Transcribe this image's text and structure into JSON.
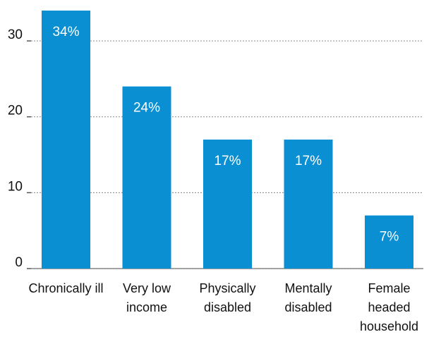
{
  "chart_data": {
    "type": "bar",
    "categories": [
      "Chronically ill",
      "Very low income",
      "Physically disabled",
      "Mentally disabled",
      "Female headed household"
    ],
    "values": [
      34,
      24,
      17,
      17,
      7
    ],
    "value_labels": [
      "34%",
      "24%",
      "17%",
      "17%",
      "7%"
    ],
    "color": "#0a8fd3",
    "ylim": [
      0,
      34
    ],
    "yticks": [
      0,
      10,
      20,
      30
    ],
    "grid": true
  }
}
